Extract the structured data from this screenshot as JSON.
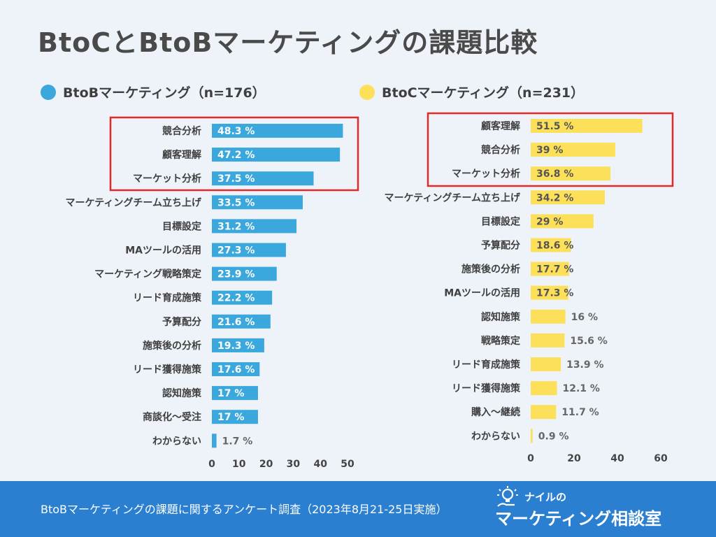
{
  "title": "BtoCとBtoBマーケティングの課題比較",
  "colors": {
    "btob": "#3aa7dd",
    "btoc": "#fde05a",
    "highlight": "#e02a2a",
    "label": "#3f3f3f",
    "footer": "#2a7fd1"
  },
  "footer": {
    "text": "BtoBマーケティングの課題に関するアンケート調査（2023年8月21-25日実施）",
    "logo_small": "ナイルの",
    "logo_big": "マーケティング相談室"
  },
  "chart_data": [
    {
      "type": "bar",
      "orientation": "horizontal",
      "legend": "BtoBマーケティング（n=176）",
      "categories": [
        "競合分析",
        "顧客理解",
        "マーケット分析",
        "マーケティングチーム立ち上げ",
        "目標設定",
        "MAツールの活用",
        "マーケティング戦略策定",
        "リード育成施策",
        "予算配分",
        "施策後の分析",
        "リード獲得施策",
        "認知施策",
        "商談化〜受注",
        "わからない"
      ],
      "values": [
        48.3,
        47.2,
        37.5,
        33.5,
        31.2,
        27.3,
        23.9,
        22.2,
        21.6,
        19.3,
        17.6,
        17,
        17,
        1.7
      ],
      "value_labels": [
        "48.3 %",
        "47.2 %",
        "37.5 %",
        "33.5 %",
        "31.2 %",
        "27.3 %",
        "23.9 %",
        "22.2 %",
        "21.6 %",
        "19.3 %",
        "17.6 %",
        "17 %",
        "17 %",
        "1.7 %"
      ],
      "xlim": [
        0,
        50
      ],
      "xticks": [
        "0",
        "10",
        "20",
        "30",
        "40",
        "50"
      ],
      "highlighted_top": 3
    },
    {
      "type": "bar",
      "orientation": "horizontal",
      "legend": "BtoCマーケティング（n=231）",
      "categories": [
        "顧客理解",
        "競合分析",
        "マーケット分析",
        "マーケティングチーム立ち上げ",
        "目標設定",
        "予算配分",
        "施策後の分析",
        "MAツールの活用",
        "認知施策",
        "戦略策定",
        "リード育成施策",
        "リード獲得施策",
        "購入〜継続",
        "わからない"
      ],
      "values": [
        51.5,
        39,
        36.8,
        34.2,
        29,
        18.6,
        17.7,
        17.3,
        16,
        15.6,
        13.9,
        12.1,
        11.7,
        0.9
      ],
      "value_labels": [
        "51.5 %",
        "39 %",
        "36.8 %",
        "34.2 %",
        "29 %",
        "18.6 %",
        "17.7 %",
        "17.3 %",
        "16 %",
        "15.6 %",
        "13.9 %",
        "12.1 %",
        "11.7 %",
        "0.9 %"
      ],
      "xlim": [
        0,
        60
      ],
      "xticks": [
        "0",
        "20",
        "40",
        "60"
      ],
      "highlighted_top": 3
    }
  ]
}
